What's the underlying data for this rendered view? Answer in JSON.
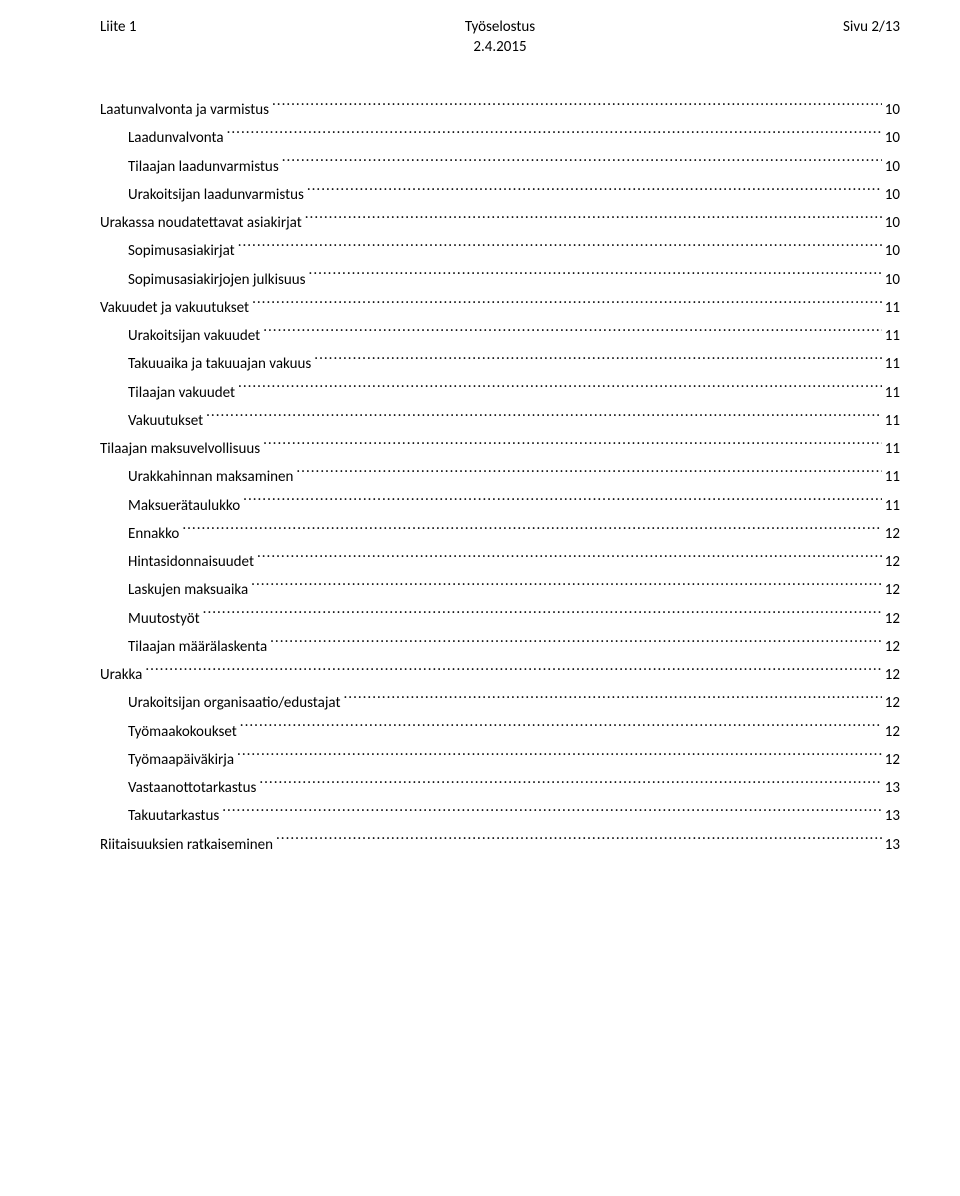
{
  "header": {
    "left": "Liite 1",
    "center_line1": "Työselostus",
    "center_line2": "2.4.2015",
    "right": "Sivu 2/13"
  },
  "toc": [
    {
      "label": "Laatunvalvonta ja varmistus",
      "page": "10",
      "indent": 0
    },
    {
      "label": "Laadunvalvonta",
      "page": "10",
      "indent": 1
    },
    {
      "label": "Tilaajan laadunvarmistus",
      "page": "10",
      "indent": 1
    },
    {
      "label": "Urakoitsijan laadunvarmistus",
      "page": "10",
      "indent": 1
    },
    {
      "label": "Urakassa noudatettavat asiakirjat",
      "page": "10",
      "indent": 0
    },
    {
      "label": "Sopimusasiakirjat",
      "page": "10",
      "indent": 1
    },
    {
      "label": "Sopimusasiakirjojen julkisuus",
      "page": "10",
      "indent": 1
    },
    {
      "label": "Vakuudet ja vakuutukset",
      "page": "11",
      "indent": 0
    },
    {
      "label": "Urakoitsijan vakuudet",
      "page": "11",
      "indent": 1
    },
    {
      "label": "Takuuaika ja takuuajan vakuus",
      "page": "11",
      "indent": 1
    },
    {
      "label": "Tilaajan vakuudet",
      "page": "11",
      "indent": 1
    },
    {
      "label": "Vakuutukset",
      "page": "11",
      "indent": 1
    },
    {
      "label": "Tilaajan maksuvelvollisuus",
      "page": "11",
      "indent": 0
    },
    {
      "label": "Urakkahinnan maksaminen",
      "page": "11",
      "indent": 1
    },
    {
      "label": "Maksuerätaulukko",
      "page": "11",
      "indent": 1
    },
    {
      "label": "Ennakko",
      "page": "12",
      "indent": 1
    },
    {
      "label": "Hintasidonnaisuudet",
      "page": "12",
      "indent": 1
    },
    {
      "label": "Laskujen maksuaika",
      "page": "12",
      "indent": 1
    },
    {
      "label": "Muutostyöt",
      "page": "12",
      "indent": 1
    },
    {
      "label": "Tilaajan määrälaskenta",
      "page": "12",
      "indent": 1
    },
    {
      "label": "Urakka",
      "page": "12",
      "indent": 0
    },
    {
      "label": "Urakoitsijan organisaatio/edustajat",
      "page": "12",
      "indent": 1
    },
    {
      "label": "Työmaakokoukset",
      "page": "12",
      "indent": 1
    },
    {
      "label": "Työmaapäiväkirja",
      "page": "12",
      "indent": 1
    },
    {
      "label": "Vastaanottotarkastus",
      "page": "13",
      "indent": 1
    },
    {
      "label": "Takuutarkastus",
      "page": "13",
      "indent": 1
    },
    {
      "label": "Riitaisuuksien ratkaiseminen",
      "page": "13",
      "indent": 0
    }
  ]
}
